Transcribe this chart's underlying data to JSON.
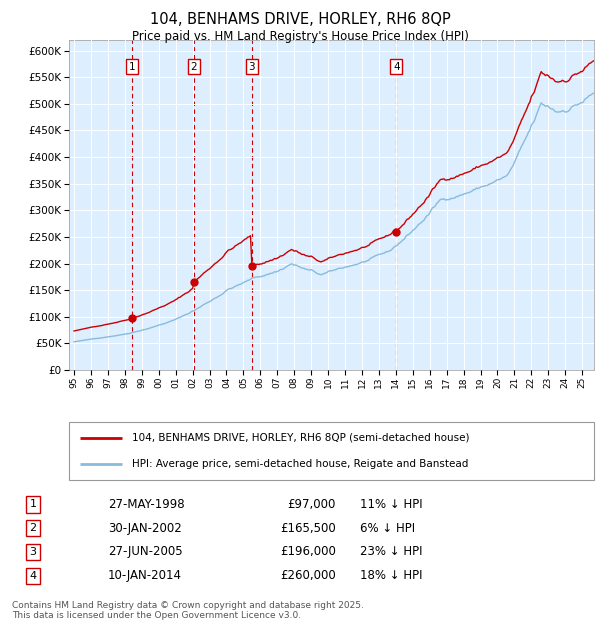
{
  "title": "104, BENHAMS DRIVE, HORLEY, RH6 8QP",
  "subtitle": "Price paid vs. HM Land Registry's House Price Index (HPI)",
  "legend_red": "104, BENHAMS DRIVE, HORLEY, RH6 8QP (semi-detached house)",
  "legend_blue": "HPI: Average price, semi-detached house, Reigate and Banstead",
  "footer": "Contains HM Land Registry data © Crown copyright and database right 2025.\nThis data is licensed under the Open Government Licence v3.0.",
  "sales": [
    {
      "num": 1,
      "date": "27-MAY-1998",
      "year": 1998.41,
      "price": 97000,
      "hpi_pct": "11% ↓ HPI"
    },
    {
      "num": 2,
      "date": "30-JAN-2002",
      "year": 2002.08,
      "price": 165500,
      "hpi_pct": "6% ↓ HPI"
    },
    {
      "num": 3,
      "date": "27-JUN-2005",
      "year": 2005.49,
      "price": 196000,
      "hpi_pct": "23% ↓ HPI"
    },
    {
      "num": 4,
      "date": "10-JAN-2014",
      "year": 2014.03,
      "price": 260000,
      "hpi_pct": "18% ↓ HPI"
    }
  ],
  "ylim": [
    0,
    620000
  ],
  "xlim_start": 1994.7,
  "xlim_end": 2025.7,
  "background_color": "#ddeeff",
  "grid_color": "#ffffff",
  "red_color": "#cc0000",
  "blue_color": "#88bbdd",
  "vline_color": "#cc0000",
  "sale_marker_color": "#cc0000",
  "box_color": "#cc0000"
}
